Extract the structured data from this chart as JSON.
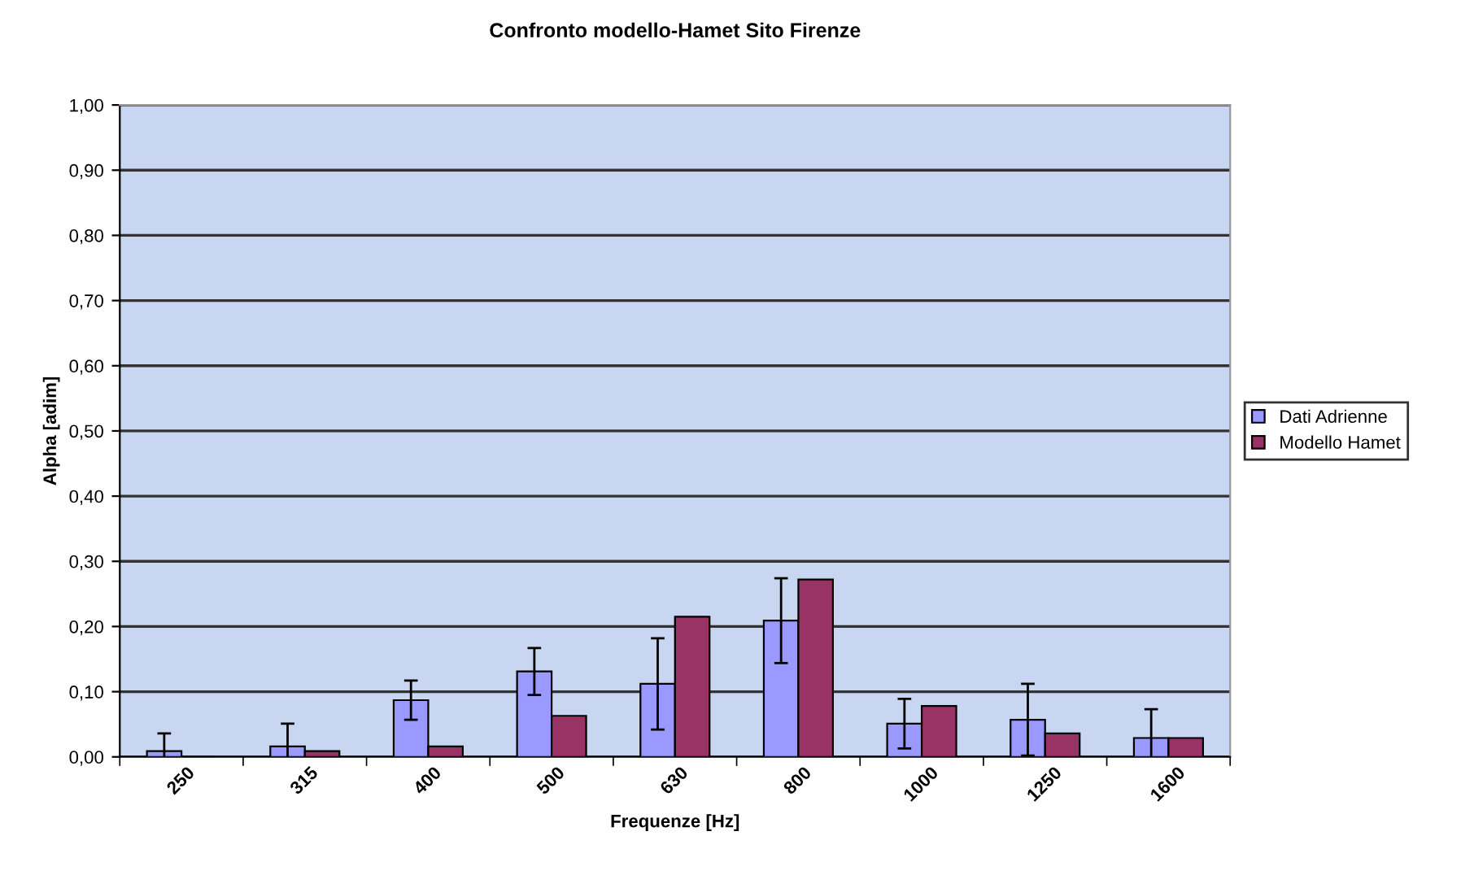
{
  "chart_data": {
    "type": "bar",
    "title": "Confronto modello-Hamet Sito Firenze",
    "xlabel": "Frequenze [Hz]",
    "ylabel": "Alpha [adim]",
    "categories": [
      "250",
      "315",
      "400",
      "500",
      "630",
      "800",
      "1000",
      "1250",
      "1600"
    ],
    "series": [
      {
        "name": "Dati Adrienne",
        "color": "#9999ff",
        "values": [
          0.009,
          0.016,
          0.087,
          0.131,
          0.112,
          0.209,
          0.051,
          0.057,
          0.029
        ],
        "errors": [
          0.027,
          0.035,
          0.03,
          0.036,
          0.07,
          0.065,
          0.038,
          0.055,
          0.044
        ]
      },
      {
        "name": "Modello Hamet",
        "color": "#993366",
        "values": [
          0,
          0.009,
          0.016,
          0.063,
          0.215,
          0.272,
          0.078,
          0.036,
          0.029
        ]
      }
    ],
    "ylim": [
      0,
      1
    ],
    "yticks": [
      {
        "value": 0,
        "label": "0,00"
      },
      {
        "value": 0.1,
        "label": "0,10"
      },
      {
        "value": 0.2,
        "label": "0,20"
      },
      {
        "value": 0.3,
        "label": "0,30"
      },
      {
        "value": 0.4,
        "label": "0,40"
      },
      {
        "value": 0.5,
        "label": "0,50"
      },
      {
        "value": 0.6,
        "label": "0,60"
      },
      {
        "value": 0.7,
        "label": "0,70"
      },
      {
        "value": 0.8,
        "label": "0,80"
      },
      {
        "value": 0.9,
        "label": "0,90"
      },
      {
        "value": 1,
        "label": "1,00"
      }
    ],
    "grid": "y",
    "legend": "right"
  }
}
